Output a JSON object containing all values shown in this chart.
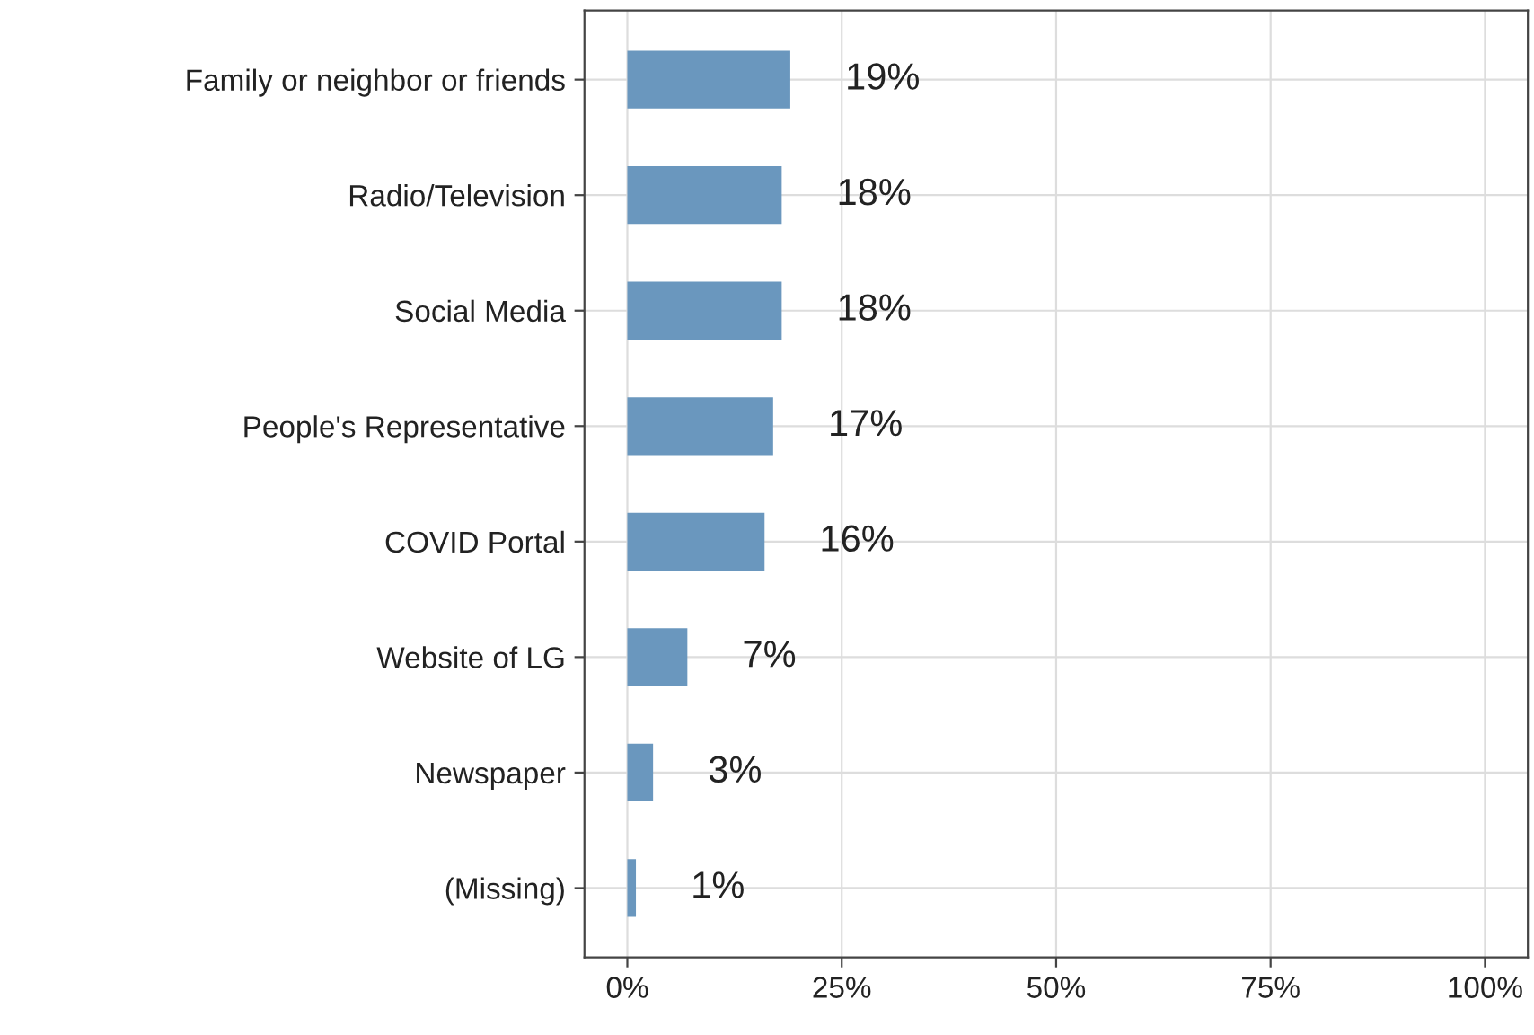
{
  "chart_data": {
    "type": "bar",
    "orientation": "horizontal",
    "categories": [
      "Family or neighbor or friends",
      "Radio/Television",
      "Social Media",
      "People's Representative",
      "COVID Portal",
      "Website of LG",
      "Newspaper",
      "(Missing)"
    ],
    "values": [
      19,
      18,
      18,
      17,
      16,
      7,
      3,
      1
    ],
    "value_labels": [
      "19%",
      "18%",
      "18%",
      "17%",
      "16%",
      "7%",
      "3%",
      "1%"
    ],
    "color": "#6a97be",
    "xlim": [
      -5,
      105
    ],
    "xticks": [
      {
        "value": 0,
        "label": "0%"
      },
      {
        "value": 25,
        "label": "25%"
      },
      {
        "value": 50,
        "label": "50%"
      },
      {
        "value": 75,
        "label": "75%"
      },
      {
        "value": 100,
        "label": "100%"
      }
    ],
    "grid": true,
    "legend": false
  }
}
